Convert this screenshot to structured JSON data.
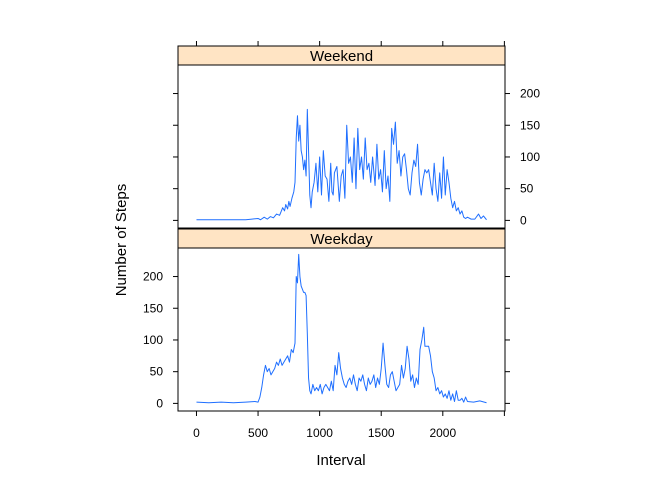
{
  "chart_data": {
    "type": "line",
    "layout": "lattice-two-panel",
    "xlabel": "Interval",
    "ylabel": "Number of Steps",
    "xlim": [
      -150,
      2505
    ],
    "ylim": [
      -12,
      245
    ],
    "x_ticks": [
      0,
      500,
      1000,
      1500,
      2000
    ],
    "y_ticks": [
      0,
      50,
      100,
      150,
      200
    ],
    "colors": {
      "line": "#1f6fff",
      "strip": "#ffe4c4",
      "frame": "#000000"
    },
    "panels": [
      {
        "name": "Weekend",
        "points": [
          [
            0,
            1
          ],
          [
            100,
            1
          ],
          [
            200,
            1
          ],
          [
            300,
            1
          ],
          [
            400,
            1
          ],
          [
            450,
            2
          ],
          [
            500,
            3
          ],
          [
            520,
            1
          ],
          [
            550,
            5
          ],
          [
            575,
            2
          ],
          [
            600,
            6
          ],
          [
            625,
            4
          ],
          [
            650,
            10
          ],
          [
            675,
            8
          ],
          [
            700,
            20
          ],
          [
            715,
            15
          ],
          [
            725,
            25
          ],
          [
            740,
            18
          ],
          [
            750,
            30
          ],
          [
            760,
            22
          ],
          [
            775,
            35
          ],
          [
            790,
            45
          ],
          [
            800,
            60
          ],
          [
            810,
            130
          ],
          [
            820,
            165
          ],
          [
            830,
            125
          ],
          [
            840,
            150
          ],
          [
            850,
            110
          ],
          [
            860,
            100
          ],
          [
            870,
            80
          ],
          [
            880,
            95
          ],
          [
            890,
            70
          ],
          [
            900,
            175
          ],
          [
            910,
            110
          ],
          [
            920,
            40
          ],
          [
            930,
            20
          ],
          [
            940,
            45
          ],
          [
            955,
            60
          ],
          [
            970,
            90
          ],
          [
            985,
            45
          ],
          [
            1000,
            100
          ],
          [
            1015,
            40
          ],
          [
            1030,
            110
          ],
          [
            1045,
            70
          ],
          [
            1060,
            65
          ],
          [
            1075,
            30
          ],
          [
            1090,
            90
          ],
          [
            1100,
            45
          ],
          [
            1110,
            40
          ],
          [
            1120,
            75
          ],
          [
            1140,
            85
          ],
          [
            1160,
            30
          ],
          [
            1175,
            70
          ],
          [
            1190,
            80
          ],
          [
            1205,
            35
          ],
          [
            1220,
            150
          ],
          [
            1235,
            90
          ],
          [
            1250,
            100
          ],
          [
            1265,
            60
          ],
          [
            1280,
            130
          ],
          [
            1295,
            50
          ],
          [
            1310,
            145
          ],
          [
            1325,
            80
          ],
          [
            1340,
            100
          ],
          [
            1355,
            65
          ],
          [
            1370,
            130
          ],
          [
            1385,
            80
          ],
          [
            1400,
            90
          ],
          [
            1415,
            60
          ],
          [
            1430,
            100
          ],
          [
            1450,
            55
          ],
          [
            1465,
            120
          ],
          [
            1480,
            65
          ],
          [
            1495,
            80
          ],
          [
            1510,
            45
          ],
          [
            1525,
            110
          ],
          [
            1540,
            50
          ],
          [
            1555,
            70
          ],
          [
            1570,
            30
          ],
          [
            1585,
            145
          ],
          [
            1600,
            120
          ],
          [
            1615,
            155
          ],
          [
            1630,
            90
          ],
          [
            1645,
            110
          ],
          [
            1660,
            70
          ],
          [
            1675,
            100
          ],
          [
            1690,
            105
          ],
          [
            1705,
            80
          ],
          [
            1720,
            50
          ],
          [
            1735,
            40
          ],
          [
            1750,
            75
          ],
          [
            1765,
            95
          ],
          [
            1780,
            85
          ],
          [
            1795,
            120
          ],
          [
            1810,
            60
          ],
          [
            1825,
            40
          ],
          [
            1840,
            65
          ],
          [
            1855,
            80
          ],
          [
            1870,
            75
          ],
          [
            1885,
            80
          ],
          [
            1900,
            60
          ],
          [
            1915,
            40
          ],
          [
            1930,
            90
          ],
          [
            1945,
            50
          ],
          [
            1960,
            30
          ],
          [
            1975,
            75
          ],
          [
            1990,
            35
          ],
          [
            2005,
            100
          ],
          [
            2020,
            40
          ],
          [
            2035,
            80
          ],
          [
            2050,
            60
          ],
          [
            2065,
            35
          ],
          [
            2080,
            20
          ],
          [
            2095,
            30
          ],
          [
            2110,
            15
          ],
          [
            2125,
            20
          ],
          [
            2140,
            10
          ],
          [
            2155,
            15
          ],
          [
            2170,
            5
          ],
          [
            2185,
            3
          ],
          [
            2200,
            5
          ],
          [
            2230,
            2
          ],
          [
            2260,
            2
          ],
          [
            2290,
            10
          ],
          [
            2310,
            3
          ],
          [
            2330,
            7
          ],
          [
            2355,
            1
          ]
        ]
      },
      {
        "name": "Weekday",
        "points": [
          [
            0,
            2
          ],
          [
            100,
            1
          ],
          [
            200,
            2
          ],
          [
            300,
            1
          ],
          [
            400,
            2
          ],
          [
            475,
            3
          ],
          [
            500,
            2
          ],
          [
            515,
            10
          ],
          [
            530,
            25
          ],
          [
            545,
            45
          ],
          [
            560,
            60
          ],
          [
            575,
            50
          ],
          [
            590,
            55
          ],
          [
            605,
            45
          ],
          [
            620,
            50
          ],
          [
            635,
            55
          ],
          [
            650,
            65
          ],
          [
            665,
            60
          ],
          [
            680,
            70
          ],
          [
            695,
            60
          ],
          [
            710,
            65
          ],
          [
            725,
            70
          ],
          [
            740,
            75
          ],
          [
            755,
            65
          ],
          [
            770,
            85
          ],
          [
            785,
            80
          ],
          [
            800,
            95
          ],
          [
            810,
            200
          ],
          [
            820,
            190
          ],
          [
            830,
            235
          ],
          [
            840,
            200
          ],
          [
            850,
            185
          ],
          [
            860,
            180
          ],
          [
            870,
            175
          ],
          [
            880,
            175
          ],
          [
            890,
            170
          ],
          [
            900,
            110
          ],
          [
            910,
            40
          ],
          [
            920,
            20
          ],
          [
            930,
            15
          ],
          [
            945,
            30
          ],
          [
            960,
            20
          ],
          [
            975,
            25
          ],
          [
            990,
            20
          ],
          [
            1005,
            30
          ],
          [
            1020,
            15
          ],
          [
            1035,
            25
          ],
          [
            1050,
            30
          ],
          [
            1065,
            25
          ],
          [
            1080,
            20
          ],
          [
            1095,
            35
          ],
          [
            1110,
            20
          ],
          [
            1125,
            60
          ],
          [
            1140,
            45
          ],
          [
            1155,
            80
          ],
          [
            1170,
            55
          ],
          [
            1185,
            40
          ],
          [
            1200,
            30
          ],
          [
            1215,
            25
          ],
          [
            1230,
            35
          ],
          [
            1245,
            40
          ],
          [
            1260,
            30
          ],
          [
            1275,
            45
          ],
          [
            1290,
            30
          ],
          [
            1305,
            20
          ],
          [
            1320,
            40
          ],
          [
            1335,
            35
          ],
          [
            1350,
            45
          ],
          [
            1365,
            30
          ],
          [
            1380,
            20
          ],
          [
            1395,
            40
          ],
          [
            1410,
            30
          ],
          [
            1425,
            35
          ],
          [
            1440,
            45
          ],
          [
            1455,
            25
          ],
          [
            1470,
            40
          ],
          [
            1485,
            30
          ],
          [
            1500,
            55
          ],
          [
            1515,
            95
          ],
          [
            1530,
            60
          ],
          [
            1545,
            30
          ],
          [
            1560,
            25
          ],
          [
            1575,
            45
          ],
          [
            1590,
            50
          ],
          [
            1605,
            35
          ],
          [
            1620,
            20
          ],
          [
            1635,
            25
          ],
          [
            1650,
            30
          ],
          [
            1665,
            60
          ],
          [
            1680,
            40
          ],
          [
            1695,
            55
          ],
          [
            1710,
            90
          ],
          [
            1725,
            70
          ],
          [
            1740,
            35
          ],
          [
            1755,
            45
          ],
          [
            1770,
            25
          ],
          [
            1785,
            40
          ],
          [
            1800,
            30
          ],
          [
            1815,
            85
          ],
          [
            1830,
            100
          ],
          [
            1845,
            120
          ],
          [
            1855,
            90
          ],
          [
            1870,
            90
          ],
          [
            1885,
            90
          ],
          [
            1900,
            75
          ],
          [
            1915,
            50
          ],
          [
            1930,
            40
          ],
          [
            1945,
            20
          ],
          [
            1960,
            25
          ],
          [
            1975,
            15
          ],
          [
            1990,
            20
          ],
          [
            2005,
            10
          ],
          [
            2020,
            15
          ],
          [
            2035,
            8
          ],
          [
            2050,
            20
          ],
          [
            2065,
            5
          ],
          [
            2080,
            15
          ],
          [
            2095,
            3
          ],
          [
            2110,
            20
          ],
          [
            2125,
            5
          ],
          [
            2140,
            5
          ],
          [
            2155,
            8
          ],
          [
            2170,
            2
          ],
          [
            2185,
            10
          ],
          [
            2200,
            3
          ],
          [
            2250,
            2
          ],
          [
            2300,
            4
          ],
          [
            2355,
            1
          ]
        ]
      }
    ]
  }
}
